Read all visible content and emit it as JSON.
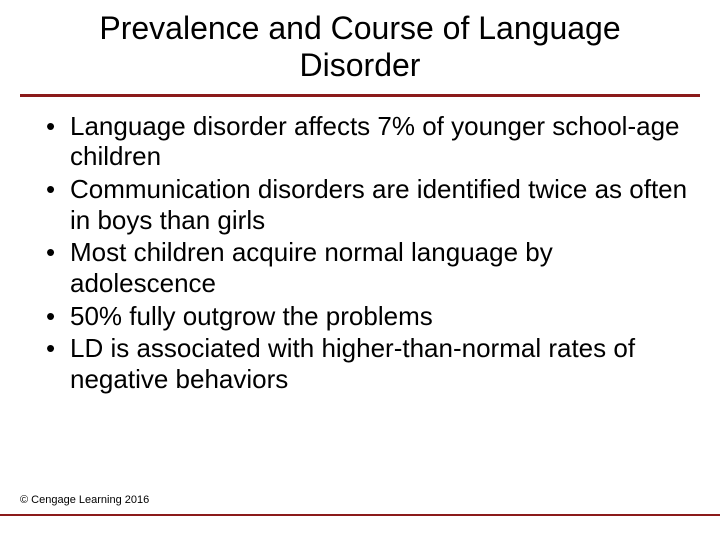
{
  "title": "Prevalence and Course of Language Disorder",
  "bullets": [
    "Language disorder affects 7% of younger school-age children",
    "Communication disorders are identified twice as often in boys than girls",
    "Most children acquire normal language by adolescence",
    "50% fully outgrow the problems",
    "LD is associated with higher-than-normal rates of negative behaviors"
  ],
  "footer": "© Cengage Learning 2016",
  "styles": {
    "title_fontsize": 32,
    "bullet_fontsize": 26,
    "footer_fontsize": 11,
    "text_color": "#000000",
    "background_color": "#ffffff",
    "divider_color": "#8b1a1a",
    "divider_top_width": 3,
    "divider_bottom_width": 2,
    "font_family": "Arial"
  }
}
